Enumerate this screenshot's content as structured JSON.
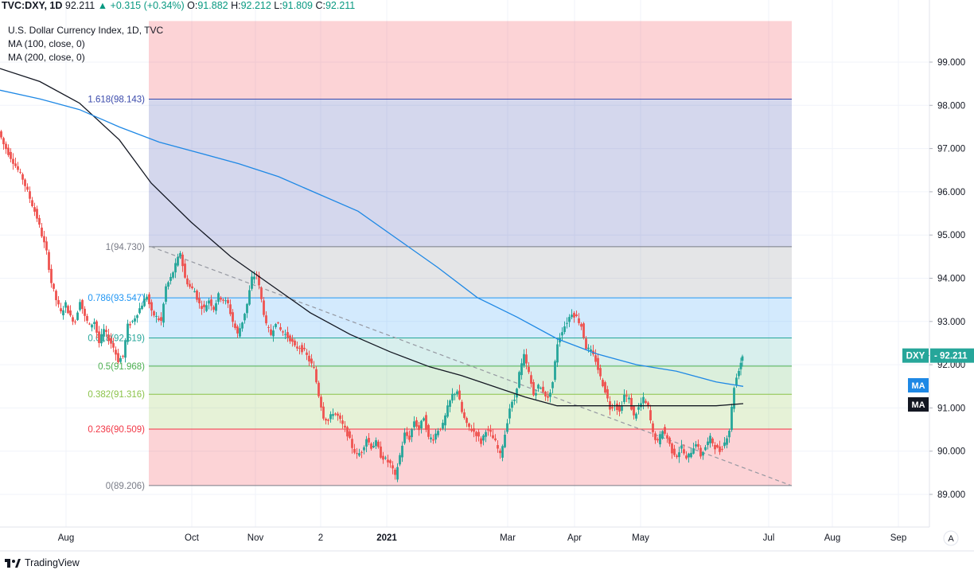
{
  "header": {
    "symbol": "TVC:DXY, 1D",
    "last": "92.211",
    "change": "+0.315 (+0.34%)",
    "open_label": "O:",
    "open": "91.882",
    "high_label": "H:",
    "high": "92.212",
    "low_label": "L:",
    "low": "91.809",
    "close_label": "C:",
    "close": "92.211"
  },
  "legend": [
    "U.S. Dollar Currency Index, 1D, TVC",
    "MA (100, close, 0)",
    "MA (200, close, 0)"
  ],
  "brand": "TradingView",
  "price_tag": {
    "symbol": "DXY",
    "value": "92.211"
  },
  "ma_tags": {
    "ma100": "MA",
    "ma200": "MA"
  },
  "scale_button": "A",
  "colors": {
    "up": "#26a69a",
    "down": "#ef5350",
    "ma100": "#1e88e5",
    "ma200": "#131722",
    "tag": "#26a69a"
  },
  "chart_data": {
    "type": "candlestick",
    "title": "U.S. Dollar Currency Index, 1D, TVC",
    "y_ticks": [
      "89.000",
      "90.000",
      "91.000",
      "92.000",
      "93.000",
      "94.000",
      "95.000",
      "96.000",
      "97.000",
      "98.000",
      "99.000"
    ],
    "ylim": [
      88.6,
      99.95
    ],
    "x_ticks": [
      "Aug",
      "Oct",
      "Nov",
      "2",
      "2021",
      "Mar",
      "Apr",
      "May",
      "Jul",
      "Aug",
      "Sep"
    ],
    "fib_levels": [
      {
        "label": "1.618(98.143)",
        "value": 98.143,
        "color": "#3949ab"
      },
      {
        "label": "1(94.730)",
        "value": 94.73,
        "color": "#787b86"
      },
      {
        "label": "0.786(93.547)",
        "value": 93.547,
        "color": "#2196f3"
      },
      {
        "label": "0.618(92.619)",
        "value": 92.619,
        "color": "#26a69a"
      },
      {
        "label": "0.5(91.968)",
        "value": 91.968,
        "color": "#4caf50"
      },
      {
        "label": "0.382(91.316)",
        "value": 91.316,
        "color": "#8bc34a"
      },
      {
        "label": "0.236(90.509)",
        "value": 90.509,
        "color": "#f23645"
      },
      {
        "label": "0(89.206)",
        "value": 89.206,
        "color": "#787b86"
      }
    ],
    "fib_top_value": 99.95,
    "price_path": [
      [
        0,
        97.4
      ],
      [
        6,
        97.1
      ],
      [
        12,
        96.9
      ],
      [
        18,
        96.7
      ],
      [
        24,
        96.5
      ],
      [
        30,
        96.3
      ],
      [
        36,
        96.0
      ],
      [
        42,
        95.7
      ],
      [
        48,
        95.4
      ],
      [
        54,
        95.0
      ],
      [
        60,
        94.6
      ],
      [
        66,
        93.9
      ],
      [
        72,
        93.5
      ],
      [
        78,
        93.2
      ],
      [
        84,
        93.4
      ],
      [
        90,
        93.1
      ],
      [
        96,
        93.0
      ],
      [
        102,
        93.5
      ],
      [
        108,
        93.1
      ],
      [
        114,
        92.9
      ],
      [
        120,
        93.0
      ],
      [
        126,
        92.5
      ],
      [
        132,
        92.8
      ],
      [
        138,
        92.6
      ],
      [
        144,
        92.4
      ],
      [
        150,
        92.1
      ],
      [
        156,
        92.2
      ],
      [
        162,
        92.9
      ],
      [
        168,
        93.0
      ],
      [
        174,
        93.2
      ],
      [
        180,
        93.4
      ],
      [
        186,
        93.6
      ],
      [
        192,
        93.2
      ],
      [
        198,
        93.1
      ],
      [
        204,
        93.0
      ],
      [
        210,
        93.8
      ],
      [
        216,
        94.0
      ],
      [
        222,
        94.3
      ],
      [
        228,
        94.6
      ],
      [
        234,
        94.0
      ],
      [
        240,
        93.8
      ],
      [
        246,
        93.7
      ],
      [
        252,
        93.4
      ],
      [
        258,
        93.3
      ],
      [
        264,
        93.5
      ],
      [
        270,
        93.3
      ],
      [
        276,
        93.6
      ],
      [
        282,
        93.5
      ],
      [
        288,
        93.4
      ],
      [
        294,
        93.0
      ],
      [
        300,
        92.7
      ],
      [
        306,
        93.0
      ],
      [
        312,
        93.4
      ],
      [
        318,
        94.0
      ],
      [
        324,
        94.1
      ],
      [
        330,
        93.5
      ],
      [
        336,
        92.9
      ],
      [
        342,
        92.7
      ],
      [
        348,
        93.0
      ],
      [
        354,
        92.8
      ],
      [
        360,
        92.7
      ],
      [
        366,
        92.6
      ],
      [
        372,
        92.4
      ],
      [
        378,
        92.4
      ],
      [
        384,
        92.3
      ],
      [
        390,
        92.1
      ],
      [
        396,
        91.9
      ],
      [
        402,
        91.3
      ],
      [
        408,
        90.8
      ],
      [
        414,
        90.7
      ],
      [
        420,
        90.9
      ],
      [
        426,
        90.8
      ],
      [
        432,
        90.6
      ],
      [
        438,
        90.4
      ],
      [
        444,
        90.1
      ],
      [
        450,
        89.9
      ],
      [
        456,
        90.0
      ],
      [
        462,
        90.3
      ],
      [
        468,
        90.1
      ],
      [
        474,
        90.2
      ],
      [
        480,
        89.9
      ],
      [
        486,
        89.8
      ],
      [
        492,
        89.7
      ],
      [
        498,
        89.4
      ],
      [
        504,
        89.9
      ],
      [
        510,
        90.4
      ],
      [
        516,
        90.3
      ],
      [
        522,
        90.7
      ],
      [
        528,
        90.5
      ],
      [
        534,
        90.8
      ],
      [
        540,
        90.3
      ],
      [
        546,
        90.3
      ],
      [
        552,
        90.5
      ],
      [
        558,
        90.6
      ],
      [
        564,
        91.0
      ],
      [
        570,
        91.3
      ],
      [
        576,
        91.4
      ],
      [
        582,
        90.9
      ],
      [
        588,
        90.6
      ],
      [
        594,
        90.5
      ],
      [
        600,
        90.4
      ],
      [
        606,
        90.2
      ],
      [
        612,
        90.5
      ],
      [
        618,
        90.4
      ],
      [
        624,
        90.2
      ],
      [
        630,
        89.9
      ],
      [
        636,
        90.4
      ],
      [
        642,
        91.0
      ],
      [
        648,
        91.2
      ],
      [
        654,
        91.8
      ],
      [
        660,
        92.2
      ],
      [
        666,
        91.8
      ],
      [
        672,
        91.3
      ],
      [
        678,
        91.5
      ],
      [
        684,
        91.4
      ],
      [
        690,
        91.2
      ],
      [
        696,
        91.6
      ],
      [
        702,
        92.5
      ],
      [
        708,
        92.8
      ],
      [
        714,
        93.0
      ],
      [
        720,
        93.2
      ],
      [
        726,
        93.1
      ],
      [
        732,
        92.9
      ],
      [
        738,
        92.4
      ],
      [
        744,
        92.3
      ],
      [
        750,
        92.1
      ],
      [
        756,
        91.7
      ],
      [
        762,
        91.4
      ],
      [
        768,
        91.0
      ],
      [
        774,
        91.1
      ],
      [
        780,
        90.9
      ],
      [
        786,
        91.3
      ],
      [
        792,
        91.2
      ],
      [
        798,
        90.8
      ],
      [
        804,
        91.0
      ],
      [
        810,
        91.2
      ],
      [
        816,
        91.0
      ],
      [
        822,
        90.4
      ],
      [
        828,
        90.2
      ],
      [
        834,
        90.5
      ],
      [
        840,
        90.3
      ],
      [
        846,
        90.0
      ],
      [
        852,
        89.9
      ],
      [
        858,
        90.1
      ],
      [
        864,
        89.8
      ],
      [
        870,
        90.0
      ],
      [
        876,
        90.2
      ],
      [
        882,
        89.9
      ],
      [
        888,
        90.1
      ],
      [
        894,
        90.3
      ],
      [
        900,
        90.1
      ],
      [
        906,
        90.0
      ],
      [
        912,
        90.2
      ],
      [
        918,
        90.5
      ],
      [
        924,
        91.5
      ],
      [
        930,
        91.9
      ],
      [
        934,
        92.21
      ]
    ],
    "ma100": [
      [
        0,
        98.85
      ],
      [
        50,
        98.55
      ],
      [
        100,
        98.05
      ],
      [
        150,
        97.2
      ],
      [
        190,
        96.2
      ],
      [
        240,
        95.3
      ],
      [
        290,
        94.5
      ],
      [
        340,
        93.85
      ],
      [
        390,
        93.2
      ],
      [
        440,
        92.7
      ],
      [
        490,
        92.3
      ],
      [
        540,
        91.95
      ],
      [
        580,
        91.75
      ],
      [
        620,
        91.5
      ],
      [
        660,
        91.25
      ],
      [
        700,
        91.05
      ],
      [
        750,
        91.05
      ],
      [
        800,
        91.05
      ],
      [
        850,
        91.05
      ],
      [
        900,
        91.05
      ],
      [
        934,
        91.1
      ]
    ],
    "ma200": [
      [
        0,
        98.35
      ],
      [
        50,
        98.15
      ],
      [
        100,
        97.9
      ],
      [
        150,
        97.5
      ],
      [
        200,
        97.15
      ],
      [
        250,
        96.9
      ],
      [
        300,
        96.65
      ],
      [
        350,
        96.35
      ],
      [
        400,
        95.95
      ],
      [
        450,
        95.55
      ],
      [
        500,
        94.9
      ],
      [
        550,
        94.25
      ],
      [
        600,
        93.55
      ],
      [
        650,
        93.1
      ],
      [
        700,
        92.6
      ],
      [
        750,
        92.25
      ],
      [
        800,
        92.0
      ],
      [
        850,
        91.85
      ],
      [
        900,
        91.6
      ],
      [
        934,
        91.5
      ]
    ],
    "trendline": [
      [
        190,
        94.73
      ],
      [
        995,
        89.2
      ]
    ],
    "last_price": 92.211
  }
}
